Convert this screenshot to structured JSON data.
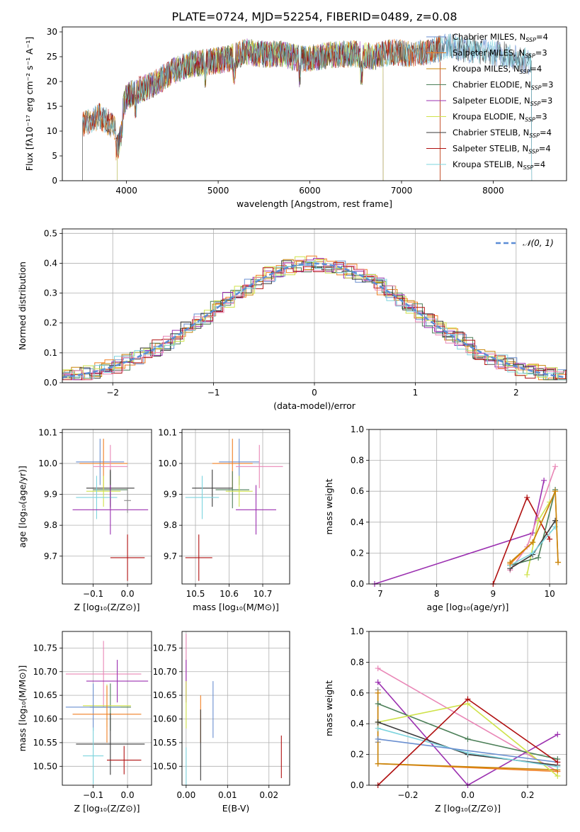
{
  "figure": {
    "title": "PLATE=0724, MJD=52254, FIBERID=0489, z=0.08"
  },
  "colors": {
    "chabrier_miles": "#6a8fd0",
    "salpeter_miles": "#f07f22",
    "kroupa_miles": "#c8860a",
    "chabrier_elodie": "#4c7f58",
    "salpeter_elodie": "#9b30b0",
    "kroupa_elodie": "#cfe24a",
    "chabrier_stelib": "#3a3a3a",
    "salpeter_stelib": "#b01010",
    "kroupa_stelib": "#7dd4de",
    "pink": "#e986b6",
    "gray": "#8b8b8b",
    "gauss": "#5b8dd6",
    "grid": "#b0b0b0"
  },
  "chart_data": [
    {
      "id": "spectrum",
      "type": "line",
      "title": "PLATE=0724, MJD=52254, FIBERID=0489, z=0.08",
      "xlabel": "wavelength [Angstrom, rest frame]",
      "ylabel": "Flux [fλ10⁻¹⁷ erg cm⁻² s⁻¹ A⁻¹]",
      "xlim": [
        3300,
        8800
      ],
      "ylim": [
        0,
        31
      ],
      "xticks": [
        4000,
        5000,
        6000,
        7000,
        8000
      ],
      "yticks": [
        0,
        5,
        10,
        15,
        20,
        25,
        30
      ],
      "grid": false,
      "legend_position": "top-right",
      "envelope": {
        "x": [
          3500,
          3700,
          3900,
          4000,
          4100,
          4300,
          4500,
          4700,
          4900,
          5100,
          5300,
          5500,
          5700,
          5900,
          6100,
          6300,
          6500,
          6700,
          6900,
          7100,
          7300,
          7500,
          7700,
          7900,
          8100,
          8300,
          8500
        ],
        "y": [
          11,
          13,
          10.5,
          17,
          18,
          19.5,
          22,
          23.5,
          24,
          24.5,
          26,
          25.5,
          25.5,
          24.5,
          25,
          25.5,
          25.5,
          25,
          26,
          25.5,
          26,
          27,
          26.5,
          26,
          25.5,
          24.5,
          23
        ]
      },
      "series": [
        {
          "name": "Chabrier MILES, N",
          "sub": "SSP",
          "suffix": "=4",
          "color_key": "chabrier_miles",
          "xstart": 3520,
          "xend": 8420
        },
        {
          "name": "Salpeter MILES, N",
          "sub": "SSP",
          "suffix": "=3",
          "color_key": "salpeter_miles",
          "xstart": 3520,
          "xend": 7420
        },
        {
          "name": "Kroupa MILES, N",
          "sub": "SSP",
          "suffix": "=4",
          "color_key": "kroupa_miles",
          "xstart": 3520,
          "xend": 7420
        },
        {
          "name": "Chabrier ELODIE, N",
          "sub": "SSP",
          "suffix": "=3",
          "color_key": "chabrier_elodie",
          "xstart": 3900,
          "xend": 6800
        },
        {
          "name": "Salpeter ELODIE, N",
          "sub": "SSP",
          "suffix": "=3",
          "color_key": "salpeter_elodie",
          "xstart": 3900,
          "xend": 6800
        },
        {
          "name": "Kroupa ELODIE, N",
          "sub": "SSP",
          "suffix": "=3",
          "color_key": "kroupa_elodie",
          "xstart": 3900,
          "xend": 6800
        },
        {
          "name": "Chabrier STELIB, N",
          "sub": "SSP",
          "suffix": "=4",
          "color_key": "chabrier_stelib",
          "xstart": 3520,
          "xend": 8420
        },
        {
          "name": "Salpeter STELIB, N",
          "sub": "SSP",
          "suffix": "=4",
          "color_key": "salpeter_stelib",
          "xstart": 3520,
          "xend": 7420
        },
        {
          "name": "Kroupa STELIB, N",
          "sub": "SSP",
          "suffix": "=4",
          "color_key": "kroupa_stelib",
          "xstart": 3520,
          "xend": 8420
        }
      ]
    },
    {
      "id": "residuals",
      "type": "histogram",
      "xlabel": "(data-model)/error",
      "ylabel": "Normed distribution",
      "xlim": [
        -2.5,
        2.5
      ],
      "ylim": [
        0,
        0.515
      ],
      "xticks": [
        -2,
        -1,
        0,
        1,
        2
      ],
      "yticks": [
        0.0,
        0.1,
        0.2,
        0.3,
        0.4,
        0.5
      ],
      "grid": true,
      "legend": "𝒩(0, 1)",
      "legend_position": "top-right",
      "bin_width": 0.1
    },
    {
      "id": "age-vs-z",
      "type": "errorbar",
      "xlabel": "Z [log₁₀(Z/Z⊙)]",
      "ylabel": "age  [log₁₀(age/yr)]",
      "xlim": [
        -0.19,
        0.07
      ],
      "ylim": [
        9.61,
        10.11
      ],
      "xticks": [
        -0.1,
        0.0
      ],
      "yticks": [
        9.7,
        9.8,
        9.9,
        10.0,
        10.1
      ],
      "grid": true,
      "points": [
        {
          "color_key": "chabrier_miles",
          "x": -0.08,
          "xerr": 0.07,
          "y": 10.005,
          "yerr": 0.075
        },
        {
          "color_key": "salpeter_miles",
          "x": -0.07,
          "xerr": 0.07,
          "y": 10.0,
          "yerr": 0.08
        },
        {
          "color_key": "pink",
          "x": -0.05,
          "xerr": 0.05,
          "y": 9.99,
          "yerr": 0.07
        },
        {
          "color_key": "chabrier_elodie",
          "x": -0.05,
          "xerr": 0.05,
          "y": 9.915,
          "yerr": 0.06
        },
        {
          "color_key": "chabrier_stelib",
          "x": -0.05,
          "xerr": 0.07,
          "y": 9.92,
          "yerr": 0.06
        },
        {
          "color_key": "kroupa_elodie",
          "x": -0.07,
          "xerr": 0.05,
          "y": 9.91,
          "yerr": 0.05
        },
        {
          "color_key": "kroupa_stelib",
          "x": -0.09,
          "xerr": 0.06,
          "y": 9.89,
          "yerr": 0.07
        },
        {
          "color_key": "salpeter_elodie",
          "x": -0.05,
          "xerr": 0.11,
          "y": 9.85,
          "yerr": 0.08
        },
        {
          "color_key": "gray",
          "x": 0.0,
          "xerr": 0.01,
          "y": 9.88,
          "yerr": 0.04
        },
        {
          "color_key": "salpeter_stelib",
          "x": 0.0,
          "xerr": 0.05,
          "y": 9.695,
          "yerr": 0.075
        }
      ]
    },
    {
      "id": "age-vs-mass",
      "type": "errorbar",
      "xlabel": "mass [log₁₀(M/M⊙)]",
      "ylabel": "",
      "xlim": [
        10.46,
        10.78
      ],
      "ylim": [
        9.61,
        10.11
      ],
      "xticks": [
        10.5,
        10.6,
        10.7
      ],
      "yticks": [
        9.7,
        9.8,
        9.9,
        10.0,
        10.1
      ],
      "grid": true,
      "points": [
        {
          "color_key": "chabrier_miles",
          "x": 10.63,
          "xerr": 0.06,
          "y": 10.005,
          "yerr": 0.075
        },
        {
          "color_key": "salpeter_miles",
          "x": 10.61,
          "xerr": 0.06,
          "y": 10.0,
          "yerr": 0.08
        },
        {
          "color_key": "pink",
          "x": 10.69,
          "xerr": 0.07,
          "y": 9.99,
          "yerr": 0.07
        },
        {
          "color_key": "chabrier_elodie",
          "x": 10.61,
          "xerr": 0.05,
          "y": 9.915,
          "yerr": 0.06
        },
        {
          "color_key": "chabrier_stelib",
          "x": 10.55,
          "xerr": 0.06,
          "y": 9.92,
          "yerr": 0.06
        },
        {
          "color_key": "kroupa_elodie",
          "x": 10.63,
          "xerr": 0.04,
          "y": 9.91,
          "yerr": 0.05
        },
        {
          "color_key": "kroupa_stelib",
          "x": 10.52,
          "xerr": 0.05,
          "y": 9.89,
          "yerr": 0.07
        },
        {
          "color_key": "salpeter_elodie",
          "x": 10.68,
          "xerr": 0.06,
          "y": 9.85,
          "yerr": 0.08
        },
        {
          "color_key": "salpeter_stelib",
          "x": 10.51,
          "xerr": 0.04,
          "y": 9.695,
          "yerr": 0.075
        }
      ]
    },
    {
      "id": "weight-vs-age",
      "type": "line",
      "xlabel": "age  [log₁₀(age/yr)]",
      "ylabel": "mass weight",
      "xlim": [
        6.8,
        10.3
      ],
      "ylim": [
        0,
        1
      ],
      "xticks": [
        7,
        8,
        9,
        10
      ],
      "yticks": [
        0.0,
        0.2,
        0.4,
        0.6,
        0.8,
        1.0
      ],
      "grid": true,
      "series": [
        {
          "color_key": "salpeter_elodie",
          "x": [
            6.9,
            9.7,
            9.9
          ],
          "y": [
            0.0,
            0.33,
            0.67
          ]
        },
        {
          "color_key": "salpeter_stelib",
          "x": [
            9.0,
            9.6,
            10.0
          ],
          "y": [
            0.0,
            0.56,
            0.29
          ]
        },
        {
          "color_key": "pink",
          "x": [
            9.3,
            9.6,
            10.1
          ],
          "y": [
            0.09,
            0.24,
            0.76
          ]
        },
        {
          "color_key": "kroupa_elodie",
          "x": [
            9.6,
            9.8,
            10.0
          ],
          "y": [
            0.06,
            0.41,
            0.53
          ]
        },
        {
          "color_key": "chabrier_elodie",
          "x": [
            9.3,
            9.8,
            10.1
          ],
          "y": [
            0.12,
            0.17,
            0.61
          ]
        },
        {
          "color_key": "chabrier_stelib",
          "x": [
            9.3,
            9.7,
            10.1
          ],
          "y": [
            0.1,
            0.19,
            0.41
          ]
        },
        {
          "color_key": "kroupa_stelib",
          "x": [
            9.3,
            9.7,
            10.1
          ],
          "y": [
            0.12,
            0.2,
            0.37
          ]
        },
        {
          "color_key": "salpeter_miles",
          "x": [
            9.3,
            9.7,
            10.1,
            10.15
          ],
          "y": [
            0.13,
            0.27,
            0.6,
            0.14
          ]
        },
        {
          "color_key": "kroupa_miles",
          "x": [
            9.3,
            9.7,
            10.1,
            10.15
          ],
          "y": [
            0.14,
            0.27,
            0.6,
            0.14
          ]
        }
      ]
    },
    {
      "id": "mass-vs-z",
      "type": "errorbar",
      "xlabel": "Z [log₁₀(Z/Z⊙)]",
      "ylabel": "mass [log₁₀(M/M⊙)]",
      "xlim": [
        -0.19,
        0.07
      ],
      "ylim": [
        10.46,
        10.785
      ],
      "xticks": [
        -0.1,
        0.0
      ],
      "yticks": [
        10.5,
        10.55,
        10.6,
        10.65,
        10.7,
        10.75
      ],
      "grid": true,
      "points": [
        {
          "color_key": "pink",
          "x": -0.07,
          "xerr": 0.11,
          "y": 10.695,
          "yerr": 0.07
        },
        {
          "color_key": "salpeter_elodie",
          "x": -0.03,
          "xerr": 0.09,
          "y": 10.68,
          "yerr": 0.045
        },
        {
          "color_key": "chabrier_elodie",
          "x": -0.05,
          "xerr": 0.06,
          "y": 10.625,
          "yerr": 0.05
        },
        {
          "color_key": "kroupa_elodie",
          "x": -0.06,
          "xerr": 0.07,
          "y": 10.628,
          "yerr": 0.045
        },
        {
          "color_key": "chabrier_miles",
          "x": -0.1,
          "xerr": 0.08,
          "y": 10.625,
          "yerr": 0.05
        },
        {
          "color_key": "salpeter_miles",
          "x": -0.06,
          "xerr": 0.1,
          "y": 10.61,
          "yerr": 0.06
        },
        {
          "color_key": "chabrier_stelib",
          "x": -0.05,
          "xerr": 0.1,
          "y": 10.547,
          "yerr": 0.065
        },
        {
          "color_key": "kroupa_stelib",
          "x": -0.1,
          "xerr": 0.03,
          "y": 10.522,
          "yerr": 0.06
        },
        {
          "color_key": "salpeter_stelib",
          "x": -0.01,
          "xerr": 0.05,
          "y": 10.513,
          "yerr": 0.03
        }
      ]
    },
    {
      "id": "mass-vs-ebv",
      "type": "errorbar",
      "xlabel": "E(B-V)",
      "ylabel": "",
      "xlim": [
        -0.001,
        0.025
      ],
      "ylim": [
        10.46,
        10.785
      ],
      "xticks": [
        0.0,
        0.01,
        0.02
      ],
      "yticks": [
        10.5,
        10.55,
        10.6,
        10.65,
        10.7,
        10.75
      ],
      "grid": true,
      "points": [
        {
          "color_key": "pink",
          "x": 0.0,
          "yerr": 0.07,
          "y": 10.71
        },
        {
          "color_key": "salpeter_elodie",
          "x": 0.0,
          "yerr": 0.045,
          "y": 10.68
        },
        {
          "color_key": "kroupa_elodie",
          "x": 0.0,
          "yerr": 0.05,
          "y": 10.63
        },
        {
          "color_key": "kroupa_stelib",
          "x": 0.0,
          "yerr": 0.04,
          "y": 10.5
        },
        {
          "color_key": "chabrier_miles",
          "x": 0.0065,
          "yerr": 0.06,
          "y": 10.62
        },
        {
          "color_key": "salpeter_miles",
          "x": 0.0035,
          "yerr": 0.05,
          "y": 10.6
        },
        {
          "color_key": "chabrier_stelib",
          "x": 0.0035,
          "yerr": 0.075,
          "y": 10.545
        },
        {
          "color_key": "salpeter_stelib",
          "x": 0.023,
          "yerr": 0.045,
          "y": 10.52
        }
      ]
    },
    {
      "id": "weight-vs-z",
      "type": "line",
      "xlabel": "Z [log₁₀(Z/Z⊙)]",
      "ylabel": "mass weight",
      "xlim": [
        -0.33,
        0.33
      ],
      "ylim": [
        0,
        1
      ],
      "xticks": [
        -0.2,
        0.0,
        0.2
      ],
      "yticks": [
        0.0,
        0.2,
        0.4,
        0.6,
        0.8,
        1.0
      ],
      "grid": true,
      "series": [
        {
          "color_key": "pink",
          "x": [
            -0.3,
            0.3
          ],
          "y": [
            0.76,
            0.09
          ]
        },
        {
          "color_key": "salpeter_elodie",
          "x": [
            -0.3,
            0.0,
            0.3
          ],
          "y": [
            0.67,
            0.0,
            0.33
          ]
        },
        {
          "color_key": "gray",
          "x": [
            -0.3,
            -0.3
          ],
          "y": [
            0.62,
            0.28
          ]
        },
        {
          "color_key": "salpeter_miles",
          "x": [
            -0.3,
            -0.3,
            0.3
          ],
          "y": [
            0.6,
            0.14,
            0.09
          ]
        },
        {
          "color_key": "kroupa_miles",
          "x": [
            -0.3,
            -0.3,
            0.3
          ],
          "y": [
            0.6,
            0.14,
            0.1
          ]
        },
        {
          "color_key": "chabrier_elodie",
          "x": [
            -0.3,
            0.0,
            0.3
          ],
          "y": [
            0.53,
            0.3,
            0.17
          ]
        },
        {
          "color_key": "kroupa_elodie",
          "x": [
            -0.3,
            0.0,
            0.3
          ],
          "y": [
            0.41,
            0.53,
            0.06
          ]
        },
        {
          "color_key": "chabrier_stelib",
          "x": [
            -0.3,
            0.0,
            0.3
          ],
          "y": [
            0.41,
            0.2,
            0.13
          ]
        },
        {
          "color_key": "kroupa_stelib",
          "x": [
            -0.3,
            0.0,
            0.3
          ],
          "y": [
            0.37,
            0.21,
            0.12
          ]
        },
        {
          "color_key": "chabrier_miles",
          "x": [
            -0.3,
            0.3
          ],
          "y": [
            0.3,
            0.15
          ]
        },
        {
          "color_key": "salpeter_stelib",
          "x": [
            -0.3,
            0.0,
            0.3
          ],
          "y": [
            0.0,
            0.56,
            0.15
          ]
        }
      ]
    }
  ]
}
